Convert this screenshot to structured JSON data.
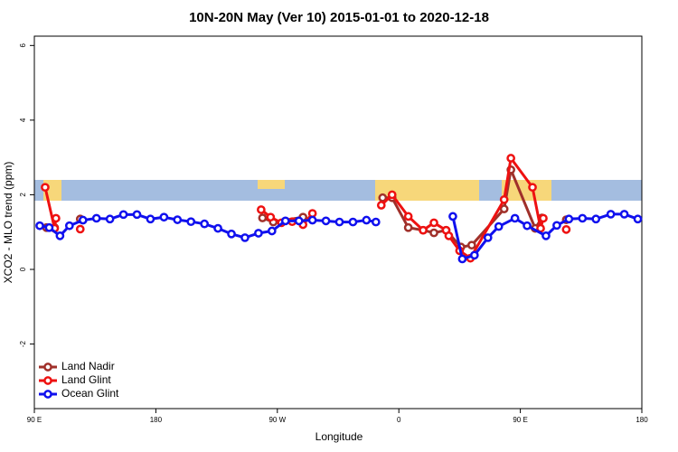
{
  "chart_data": {
    "type": "line",
    "title": "10N-20N May (Ver 10)   2015-01-01 to 2020-12-18",
    "x_label": "Longitude",
    "y_label": "XCO2 - MLO trend (ppm)",
    "xlim": [
      90,
      540
    ],
    "xticks": [
      {
        "value": 90,
        "label": "90 E"
      },
      {
        "value": 180,
        "label": "180"
      },
      {
        "value": 270,
        "label": "90 W"
      },
      {
        "value": 360,
        "label": "0"
      },
      {
        "value": 450,
        "label": "90 E"
      },
      {
        "value": 540,
        "label": "180"
      }
    ],
    "ylim": [
      -3.73,
      6.25
    ],
    "yticks": [
      -2,
      0,
      2,
      4,
      6
    ],
    "legend": "bottomleft",
    "series": [
      {
        "name": "Land Nadir",
        "color": "#a0302a",
        "x": [
          99,
          105,
          115,
          124,
          200,
          259,
          267,
          289,
          320,
          348,
          355,
          367,
          378,
          386,
          395,
          406,
          414,
          438,
          443,
          461,
          466,
          475,
          484
        ],
        "values": [
          1.12,
          1.12,
          null,
          1.35,
          null,
          1.38,
          1.27,
          1.4,
          null,
          1.92,
          1.92,
          1.12,
          1.05,
          0.98,
          1.05,
          0.6,
          0.65,
          1.62,
          2.67,
          1.1,
          1.38,
          null,
          1.33
        ]
      },
      {
        "name": "Land Glint",
        "color": "#ee1111",
        "x": [
          98,
          105,
          106,
          115,
          124,
          200,
          258,
          265,
          273,
          281,
          289,
          296,
          320,
          347,
          355,
          367,
          378,
          386,
          395,
          397,
          405,
          413,
          438,
          443,
          459,
          465,
          467,
          475,
          484
        ],
        "values": [
          2.2,
          1.1,
          1.37,
          null,
          1.08,
          null,
          1.6,
          1.4,
          1.25,
          1.28,
          1.2,
          1.5,
          null,
          1.72,
          2.0,
          1.42,
          1.05,
          1.25,
          1.05,
          0.9,
          0.5,
          0.3,
          1.87,
          2.98,
          2.2,
          1.1,
          1.37,
          null,
          1.07
        ]
      },
      {
        "name": "Ocean Glint",
        "color": "#1010ee",
        "x": [
          94,
          101,
          109,
          116,
          126,
          136,
          146,
          156,
          166,
          176,
          186,
          196,
          206,
          216,
          226,
          236,
          246,
          256,
          266,
          276,
          286,
          296,
          306,
          316,
          326,
          336,
          343,
          370,
          400,
          407,
          416,
          426,
          434,
          446,
          455,
          469,
          477,
          486,
          496,
          506,
          517,
          527,
          537
        ],
        "values": [
          1.17,
          1.12,
          0.9,
          1.17,
          1.32,
          1.37,
          1.35,
          1.47,
          1.47,
          1.35,
          1.4,
          1.33,
          1.28,
          1.22,
          1.1,
          0.95,
          0.85,
          0.97,
          1.03,
          1.3,
          1.3,
          1.32,
          1.3,
          1.27,
          1.27,
          1.32,
          1.27,
          null,
          1.42,
          0.28,
          0.38,
          0.85,
          1.15,
          1.37,
          1.17,
          0.9,
          1.18,
          1.35,
          1.37,
          1.35,
          1.48,
          1.48,
          1.35
        ]
      }
    ]
  }
}
